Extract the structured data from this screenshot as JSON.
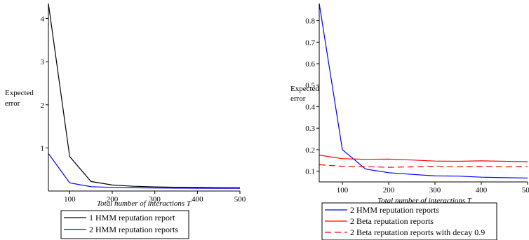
{
  "chart_data": [
    {
      "type": "line",
      "xlabel": "Total number of interactions  T",
      "ylabel": [
        "Expected",
        "error"
      ],
      "xlim": [
        50,
        500
      ],
      "ylim": [
        0,
        4.35
      ],
      "xticks": [
        100,
        200,
        300,
        400,
        500
      ],
      "yticks": [
        1,
        2,
        3,
        4
      ],
      "x": [
        50,
        100,
        150,
        200,
        250,
        300,
        350,
        400,
        450,
        500
      ],
      "legend_position": "below",
      "series": [
        {
          "name": "1 HMM reputation report",
          "color": "#000000",
          "dash": "solid",
          "values": [
            4.35,
            0.8,
            0.22,
            0.14,
            0.11,
            0.095,
            0.088,
            0.082,
            0.078,
            0.075
          ]
        },
        {
          "name": "2 HMM reputation reports",
          "color": "#0000ff",
          "dash": "solid",
          "values": [
            0.87,
            0.19,
            0.1,
            0.085,
            0.075,
            0.07,
            0.067,
            0.065,
            0.063,
            0.062
          ]
        }
      ]
    },
    {
      "type": "line",
      "xlabel": "Total number of interactions  T",
      "ylabel": [
        "Expected",
        "error"
      ],
      "xlim": [
        50,
        500
      ],
      "ylim": [
        0.05,
        0.88
      ],
      "xticks": [
        100,
        200,
        300,
        400,
        500
      ],
      "yticks": [
        0.1,
        0.2,
        0.3,
        0.4,
        0.5,
        0.6,
        0.7,
        0.8
      ],
      "x": [
        50,
        100,
        150,
        200,
        250,
        300,
        350,
        400,
        450,
        500
      ],
      "legend_position": "below",
      "series": [
        {
          "name": "2 HMM reputation reports",
          "color": "#0000ff",
          "dash": "solid",
          "values": [
            0.88,
            0.2,
            0.11,
            0.093,
            0.085,
            0.078,
            0.077,
            0.072,
            0.07,
            0.068
          ]
        },
        {
          "name": "2 Beta reputation reports",
          "color": "#ff0000",
          "dash": "solid",
          "values": [
            0.175,
            0.158,
            0.155,
            0.156,
            0.152,
            0.147,
            0.146,
            0.148,
            0.146,
            0.144
          ]
        },
        {
          "name": "2 Beta reputation reports with decay 0.9",
          "color": "#ff0000",
          "dash": "dashed",
          "values": [
            0.13,
            0.123,
            0.121,
            0.118,
            0.12,
            0.123,
            0.12,
            0.122,
            0.12,
            0.121
          ]
        }
      ]
    }
  ]
}
